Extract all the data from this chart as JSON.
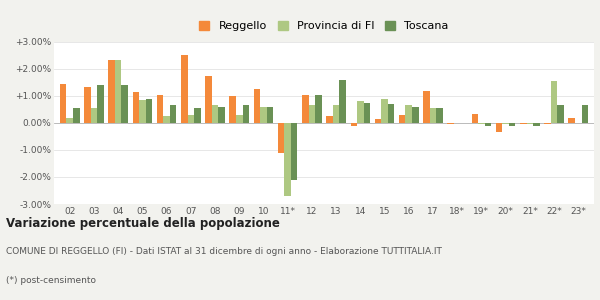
{
  "years": [
    "02",
    "03",
    "04",
    "05",
    "06",
    "07",
    "08",
    "09",
    "10",
    "11*",
    "12",
    "13",
    "14",
    "15",
    "16",
    "17",
    "18*",
    "19*",
    "20*",
    "21*",
    "22*",
    "23*"
  ],
  "reggello": [
    1.45,
    1.35,
    2.35,
    1.15,
    1.05,
    2.5,
    1.75,
    1.0,
    1.25,
    -1.1,
    1.05,
    0.25,
    -0.1,
    0.15,
    0.3,
    1.2,
    -0.05,
    0.35,
    -0.35,
    -0.05,
    -0.05,
    0.2
  ],
  "provincia_fi": [
    0.2,
    0.55,
    2.35,
    0.85,
    0.25,
    0.3,
    0.65,
    0.3,
    0.6,
    -2.7,
    0.65,
    0.65,
    0.8,
    0.9,
    0.65,
    0.55,
    0.0,
    -0.05,
    -0.05,
    -0.05,
    1.55,
    0.0
  ],
  "toscana": [
    0.55,
    1.4,
    1.4,
    0.9,
    0.65,
    0.55,
    0.6,
    0.65,
    0.6,
    -2.1,
    1.05,
    1.6,
    0.75,
    0.7,
    0.6,
    0.55,
    0.0,
    -0.1,
    -0.1,
    -0.1,
    0.65,
    0.65
  ],
  "color_reggello": "#f4893a",
  "color_provincia": "#aec882",
  "color_toscana": "#6a9155",
  "title": "Variazione percentuale della popolazione",
  "subtitle": "COMUNE DI REGGELLO (FI) - Dati ISTAT al 31 dicembre di ogni anno - Elaborazione TUTTITALIA.IT",
  "footnote": "(*) post-censimento",
  "ylim": [
    -3.0,
    3.0
  ],
  "yticks": [
    -3.0,
    -2.0,
    -1.0,
    0.0,
    1.0,
    2.0,
    3.0
  ],
  "bg_color": "#f2f2ee",
  "plot_bg": "#ffffff",
  "bar_width": 0.27
}
